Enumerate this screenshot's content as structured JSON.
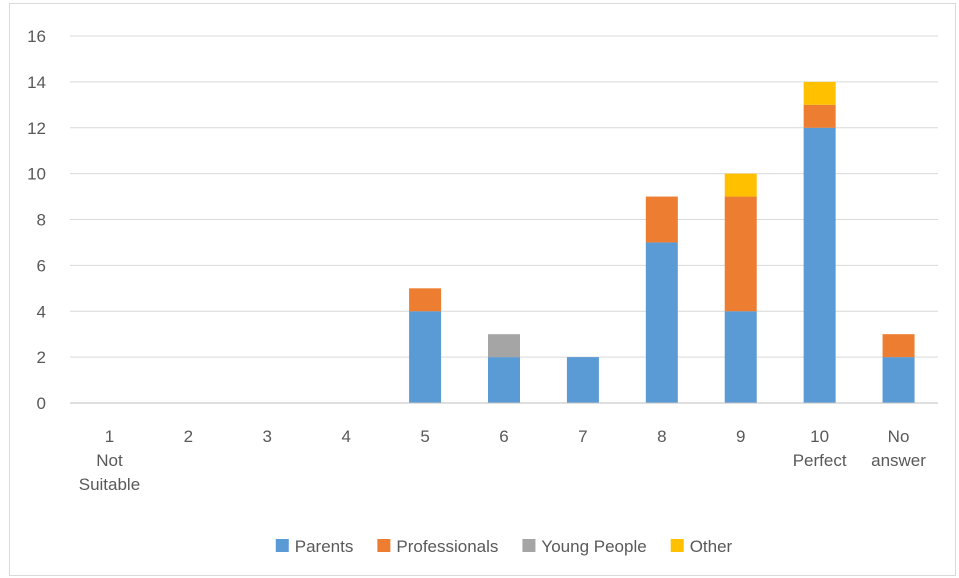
{
  "chart_data": {
    "type": "bar",
    "stacked": true,
    "categories": [
      [
        "1",
        "Not",
        "Suitable"
      ],
      [
        "2"
      ],
      [
        "3"
      ],
      [
        "4"
      ],
      [
        "5"
      ],
      [
        "6"
      ],
      [
        "7"
      ],
      [
        "8"
      ],
      [
        "9"
      ],
      [
        "10",
        "Perfect"
      ],
      [
        "No",
        "answer"
      ]
    ],
    "series": [
      {
        "name": "Parents",
        "color": "#5b9bd5",
        "values": [
          0,
          0,
          0,
          0,
          4,
          2,
          2,
          7,
          4,
          12,
          2
        ]
      },
      {
        "name": "Professionals",
        "color": "#ed7d31",
        "values": [
          0,
          0,
          0,
          0,
          1,
          0,
          0,
          2,
          5,
          1,
          1
        ]
      },
      {
        "name": "Young People",
        "color": "#a5a5a5",
        "values": [
          0,
          0,
          0,
          0,
          0,
          1,
          0,
          0,
          0,
          0,
          0
        ]
      },
      {
        "name": "Other",
        "color": "#ffc000",
        "values": [
          0,
          0,
          0,
          0,
          0,
          0,
          0,
          0,
          1,
          1,
          0
        ]
      }
    ],
    "ylim": [
      0,
      16
    ],
    "yticks": [
      0,
      2,
      4,
      6,
      8,
      10,
      12,
      14,
      16
    ],
    "grid": true,
    "legend_position": "bottom",
    "title": "",
    "xlabel": "",
    "ylabel": ""
  }
}
